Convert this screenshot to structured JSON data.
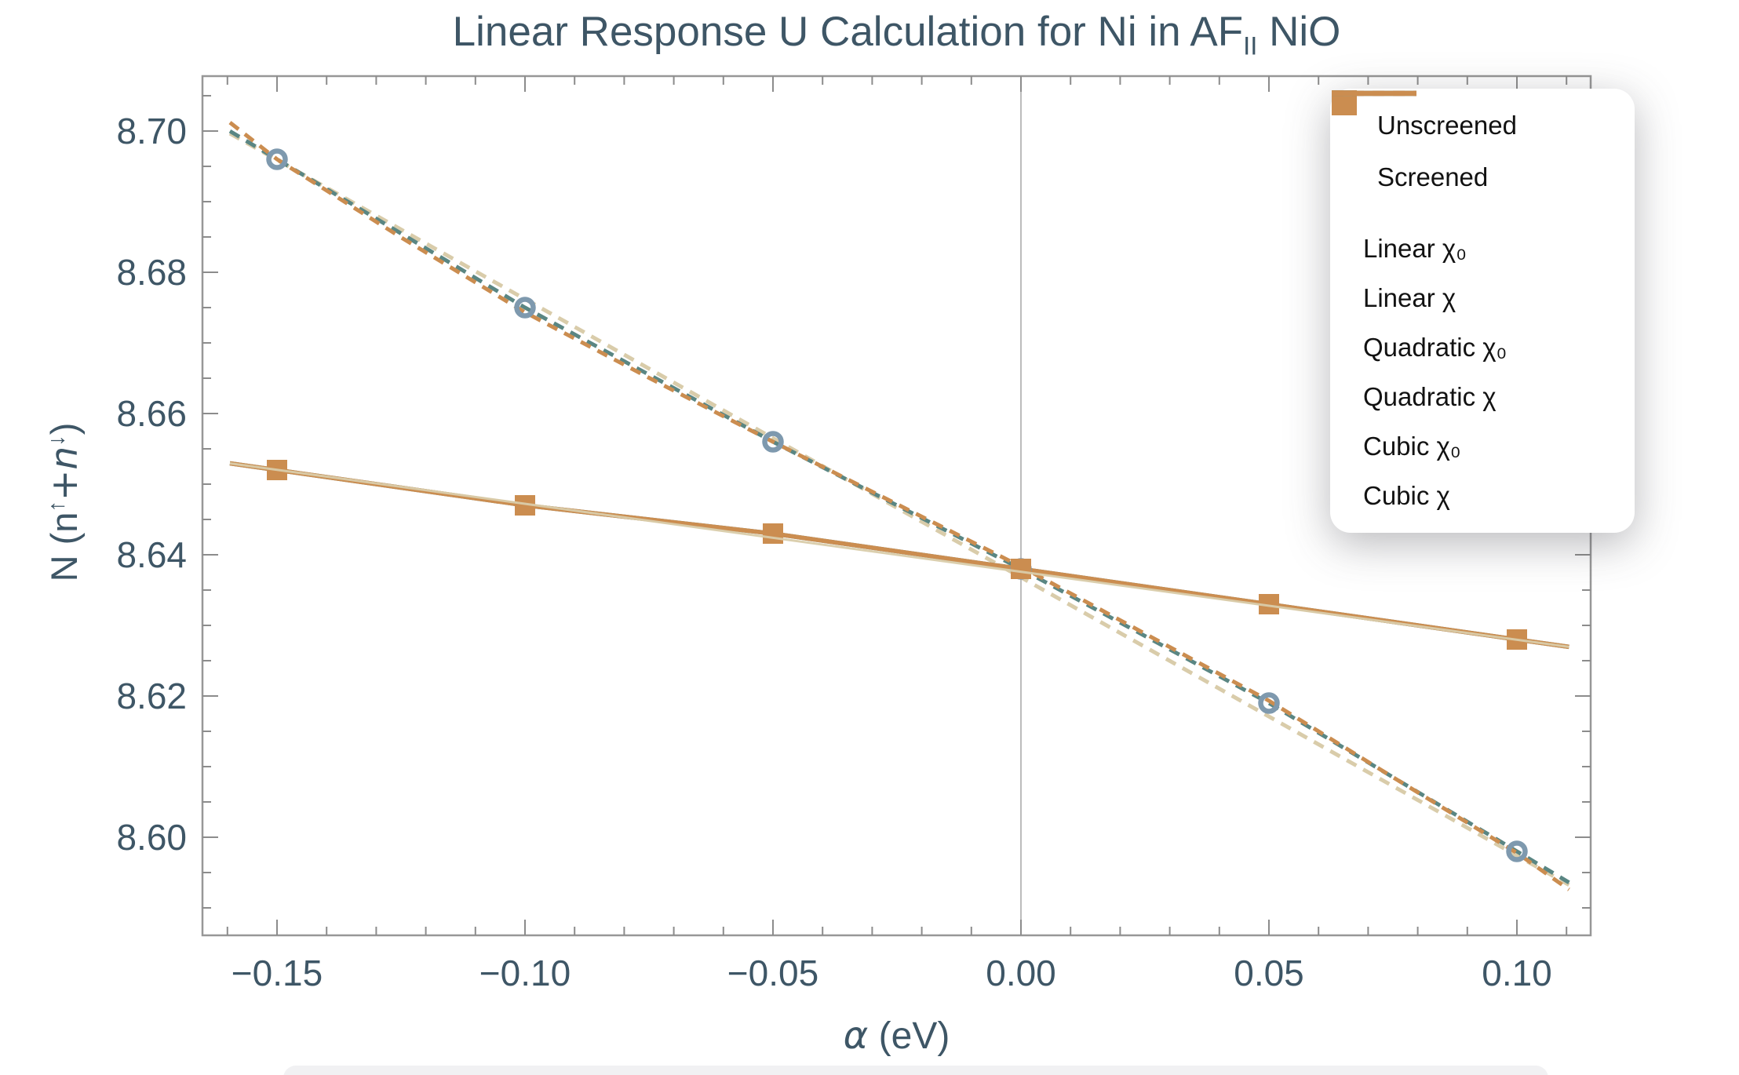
{
  "title": {
    "before_sub": "Linear Response U Calculation for Ni in AF",
    "sub": "II",
    "after_sub": " NiO"
  },
  "axes": {
    "x": {
      "label_symbol": "α",
      "label_unit": " (eV)",
      "range": [
        -0.165,
        0.115
      ],
      "minor_tick_step": 0.01,
      "gridline_at": 0,
      "ticks": [
        {
          "value": -0.15,
          "label": "−0.15"
        },
        {
          "value": -0.1,
          "label": "−0.10"
        },
        {
          "value": -0.05,
          "label": "−0.05"
        },
        {
          "value": 0.0,
          "label": "0.00"
        },
        {
          "value": 0.05,
          "label": "0.05"
        },
        {
          "value": 0.1,
          "label": "0.10"
        }
      ]
    },
    "y": {
      "label_prefix": "N (n",
      "label_sup1": "↑",
      "label_mid": "+n",
      "label_sup2": "↓",
      "label_suffix": ")",
      "range": [
        8.586,
        8.708
      ],
      "minor_tick_step": 0.005,
      "ticks": [
        {
          "value": 8.7,
          "label": "8.70"
        },
        {
          "value": 8.68,
          "label": "8.68"
        },
        {
          "value": 8.66,
          "label": "8.66"
        },
        {
          "value": 8.64,
          "label": "8.64"
        },
        {
          "value": 8.62,
          "label": "8.62"
        },
        {
          "value": 8.6,
          "label": "8.60"
        }
      ]
    }
  },
  "legend": {
    "items": [
      {
        "label": "Unscreened",
        "sample": "circle",
        "color": "#7E99AE"
      },
      {
        "label": "Screened",
        "sample": "square",
        "color": "#CB8D50"
      },
      {
        "label": "Linear χ₀",
        "sample": "dash",
        "color": "#D9CCAA"
      },
      {
        "label": "Linear χ",
        "sample": "line",
        "color": "#D9CCAA"
      },
      {
        "label": "Quadratic χ₀",
        "sample": "dash",
        "color": "#5A8683"
      },
      {
        "label": "Quadratic χ",
        "sample": "line",
        "color": "#5A8683"
      },
      {
        "label": "Cubic χ₀",
        "sample": "dash",
        "color": "#CB8D50"
      },
      {
        "label": "Cubic χ",
        "sample": "line",
        "color": "#CB8D50"
      }
    ]
  },
  "chart_data": {
    "type": "scatter",
    "title": "Linear Response U Calculation for Ni in AF_II NiO",
    "xlabel": "α (eV)",
    "ylabel": "N (n↑+n↓)",
    "xlim": [
      -0.165,
      0.115
    ],
    "ylim": [
      8.586,
      8.708
    ],
    "legend_position": "upper right",
    "grid": "vertical line at x=0 only",
    "series": [
      {
        "name": "Unscreened",
        "marker": "circle",
        "color": "#7E99AE",
        "x": [
          -0.15,
          -0.1,
          -0.05,
          0.0,
          0.05,
          0.1
        ],
        "y": [
          8.696,
          8.675,
          8.656,
          8.638,
          8.619,
          8.598
        ]
      },
      {
        "name": "Screened",
        "marker": "square",
        "color": "#CB8D50",
        "x": [
          -0.15,
          -0.1,
          -0.05,
          0.0,
          0.05,
          0.1
        ],
        "y": [
          8.652,
          8.647,
          8.643,
          8.638,
          8.633,
          8.628
        ]
      }
    ],
    "fit_lines": [
      {
        "name": "Linear χ₀",
        "fits": "Unscreened",
        "style": "dashed",
        "color": "#D9CCAA"
      },
      {
        "name": "Linear χ",
        "fits": "Screened",
        "style": "solid",
        "color": "#D9CCAA"
      },
      {
        "name": "Quadratic χ₀",
        "fits": "Unscreened",
        "style": "dashed",
        "color": "#5A8683"
      },
      {
        "name": "Quadratic χ",
        "fits": "Screened",
        "style": "solid",
        "color": "#5A8683"
      },
      {
        "name": "Cubic χ₀",
        "fits": "Unscreened",
        "style": "dashed",
        "color": "#CB8D50"
      },
      {
        "name": "Cubic χ",
        "fits": "Screened",
        "style": "solid",
        "color": "#CB8D50"
      }
    ]
  }
}
